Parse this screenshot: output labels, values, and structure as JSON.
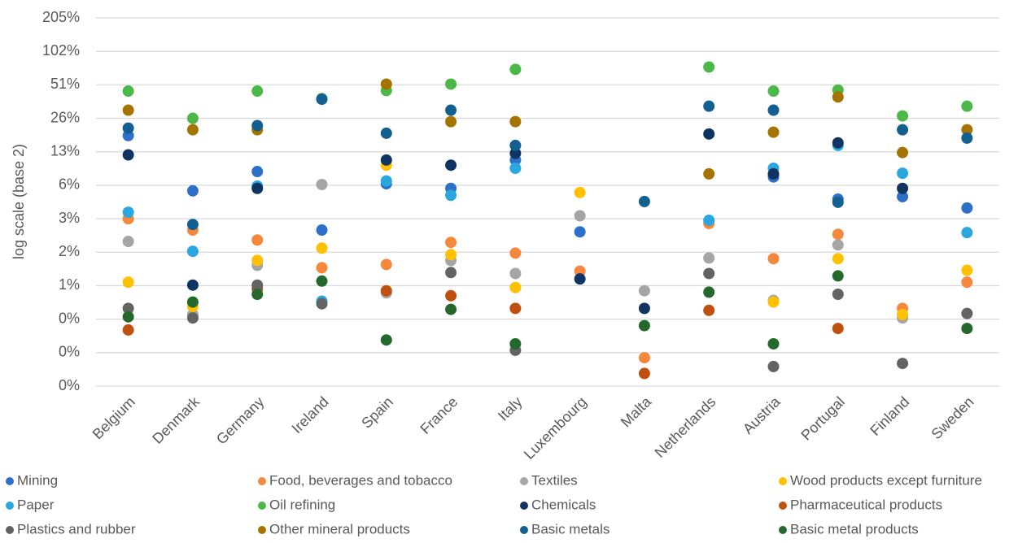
{
  "chart_data": {
    "type": "dot",
    "y_label": "log scale (base 2)",
    "log_base": 2,
    "grid": true,
    "legend": "bottom",
    "categories": [
      "Belgium",
      "Denmark",
      "Germany",
      "Ireland",
      "Spain",
      "France",
      "Italy",
      "Luxembourg",
      "Malta",
      "Netherlands",
      "Austria",
      "Portugal",
      "Finland",
      "Sweden"
    ],
    "ylim": [
      0.1,
      204.8
    ],
    "yticks": [
      {
        "value": 204.8,
        "label": "205%"
      },
      {
        "value": 102.4,
        "label": "102%"
      },
      {
        "value": 51.2,
        "label": "51%"
      },
      {
        "value": 25.6,
        "label": "26%"
      },
      {
        "value": 12.8,
        "label": "13%"
      },
      {
        "value": 6.4,
        "label": "6%"
      },
      {
        "value": 3.2,
        "label": "3%"
      },
      {
        "value": 1.6,
        "label": "2%"
      },
      {
        "value": 0.8,
        "label": "1%"
      },
      {
        "value": 0.4,
        "label": "0%"
      },
      {
        "value": 0.2,
        "label": "0%"
      },
      {
        "value": 0.1,
        "label": "0%"
      }
    ],
    "series": [
      {
        "name": "Mining",
        "color": "#2c70c9",
        "values": [
          17.9,
          5.7,
          8.5,
          2.53,
          6.6,
          6.0,
          10.8,
          2.44,
          null,
          null,
          7.6,
          4.8,
          5.05,
          4.0
        ]
      },
      {
        "name": "Food, beverages and tobacco",
        "color": "#f6883d",
        "values": [
          3.2,
          2.53,
          2.06,
          1.16,
          1.24,
          1.96,
          1.57,
          1.08,
          0.18,
          2.9,
          1.4,
          2.32,
          0.5,
          0.86
        ]
      },
      {
        "name": "Textiles",
        "color": "#a5a5a5",
        "values": [
          2.0,
          0.44,
          1.22,
          6.5,
          0.69,
          1.35,
          1.03,
          3.4,
          0.72,
          1.42,
          0.59,
          1.86,
          0.41,
          null
        ]
      },
      {
        "name": "Wood products except furniture",
        "color": "#ffc000",
        "values": [
          0.86,
          0.52,
          1.35,
          1.74,
          9.7,
          1.52,
          0.77,
          5.5,
          null,
          null,
          0.57,
          1.4,
          0.44,
          1.1
        ]
      },
      {
        "name": "Paper",
        "color": "#2ba7e0",
        "values": [
          3.66,
          1.63,
          6.3,
          0.58,
          7.0,
          5.2,
          9.1,
          null,
          null,
          3.1,
          9.1,
          14.6,
          8.2,
          2.4
        ]
      },
      {
        "name": "Oil refining",
        "color": "#4cb848",
        "values": [
          45,
          25.6,
          45,
          38.5,
          45.5,
          52,
          70.5,
          null,
          null,
          74,
          45,
          46,
          26.9,
          32.9
        ]
      },
      {
        "name": "Chemicals",
        "color": "#0f3464",
        "values": [
          12.0,
          0.81,
          6.0,
          null,
          10.8,
          9.7,
          12.4,
          0.92,
          0.5,
          18.5,
          8.1,
          15.4,
          6.0,
          null
        ]
      },
      {
        "name": "Pharmaceutical products",
        "color": "#c0500f",
        "values": [
          0.32,
          null,
          0.75,
          null,
          0.72,
          0.65,
          0.5,
          null,
          0.13,
          0.48,
          null,
          0.33,
          null,
          null
        ]
      },
      {
        "name": "Plastics and rubber",
        "color": "#636363",
        "values": [
          0.5,
          0.41,
          0.81,
          0.55,
          null,
          1.05,
          0.21,
          null,
          null,
          1.03,
          0.15,
          0.67,
          0.16,
          0.45
        ]
      },
      {
        "name": "Other mineral products",
        "color": "#a57400",
        "values": [
          30.3,
          20.2,
          20.2,
          null,
          52,
          23.9,
          23.9,
          null,
          null,
          8.1,
          19.2,
          39.8,
          12.6,
          20.2
        ]
      },
      {
        "name": "Basic metals",
        "color": "#135f8f",
        "values": [
          20.9,
          2.84,
          22.0,
          38,
          18.8,
          30.3,
          14.6,
          null,
          4.57,
          32.9,
          30.3,
          4.5,
          20.2,
          17.0
        ]
      },
      {
        "name": "Basic metal products",
        "color": "#24692b",
        "values": [
          0.42,
          0.57,
          0.67,
          0.88,
          0.26,
          0.49,
          0.24,
          null,
          0.35,
          0.7,
          0.24,
          0.98,
          null,
          0.33
        ]
      }
    ]
  }
}
